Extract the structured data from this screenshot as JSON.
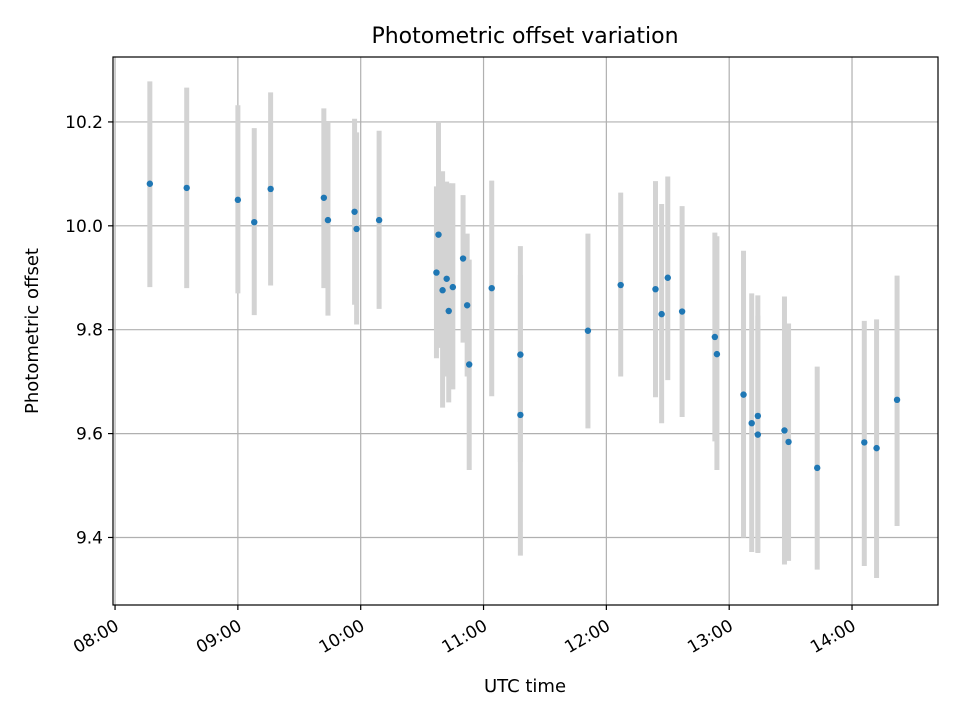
{
  "chart_data": {
    "type": "scatter",
    "title": "Photometric offset variation",
    "xlabel": "UTC time",
    "ylabel": "Photometric offset",
    "x_unit": "hours (UTC)",
    "xlim": [
      "07:59",
      "14:42"
    ],
    "ylim": [
      9.27,
      10.325
    ],
    "x_ticks": [
      "08:00",
      "09:00",
      "10:00",
      "11:00",
      "12:00",
      "13:00",
      "14:00"
    ],
    "y_ticks": [
      "9.4",
      "9.6",
      "9.8",
      "10.0",
      "10.2"
    ],
    "grid": true,
    "colors": {
      "point": "#1f77b4",
      "errorbar": "#d3d3d3",
      "grid": "#b0b0b0"
    },
    "points": [
      {
        "x": "08:17",
        "y": 10.081,
        "err_low": 9.882,
        "err_high": 10.278
      },
      {
        "x": "08:35",
        "y": 10.073,
        "err_low": 9.88,
        "err_high": 10.266
      },
      {
        "x": "09:00",
        "y": 10.05,
        "err_low": 9.87,
        "err_high": 10.232
      },
      {
        "x": "09:08",
        "y": 10.007,
        "err_low": 9.828,
        "err_high": 10.188
      },
      {
        "x": "09:16",
        "y": 10.071,
        "err_low": 9.885,
        "err_high": 10.257
      },
      {
        "x": "09:42",
        "y": 10.054,
        "err_low": 9.88,
        "err_high": 10.226
      },
      {
        "x": "09:44",
        "y": 10.011,
        "err_low": 9.827,
        "err_high": 10.2
      },
      {
        "x": "09:57",
        "y": 10.027,
        "err_low": 9.848,
        "err_high": 10.206
      },
      {
        "x": "09:58",
        "y": 9.994,
        "err_low": 9.81,
        "err_high": 10.18
      },
      {
        "x": "10:09",
        "y": 10.011,
        "err_low": 9.84,
        "err_high": 10.183
      },
      {
        "x": "10:37",
        "y": 9.91,
        "err_low": 9.745,
        "err_high": 10.076
      },
      {
        "x": "10:38",
        "y": 9.983,
        "err_low": 9.765,
        "err_high": 10.2
      },
      {
        "x": "10:40",
        "y": 9.876,
        "err_low": 9.65,
        "err_high": 10.105
      },
      {
        "x": "10:42",
        "y": 9.898,
        "err_low": 9.71,
        "err_high": 10.085
      },
      {
        "x": "10:43",
        "y": 9.836,
        "err_low": 9.66,
        "err_high": 10.082
      },
      {
        "x": "10:45",
        "y": 9.882,
        "err_low": 9.685,
        "err_high": 10.082
      },
      {
        "x": "10:50",
        "y": 9.937,
        "err_low": 9.775,
        "err_high": 10.059
      },
      {
        "x": "10:52",
        "y": 9.847,
        "err_low": 9.71,
        "err_high": 9.985
      },
      {
        "x": "10:53",
        "y": 9.733,
        "err_low": 9.53,
        "err_high": 9.935
      },
      {
        "x": "11:04",
        "y": 9.88,
        "err_low": 9.672,
        "err_high": 10.087
      },
      {
        "x": "11:18",
        "y": 9.752,
        "err_low": 9.545,
        "err_high": 9.961
      },
      {
        "x": "11:18",
        "y": 9.636,
        "err_low": 9.365,
        "err_high": 9.905
      },
      {
        "x": "11:51",
        "y": 9.798,
        "err_low": 9.61,
        "err_high": 9.985
      },
      {
        "x": "12:07",
        "y": 9.886,
        "err_low": 9.71,
        "err_high": 10.064
      },
      {
        "x": "12:24",
        "y": 9.878,
        "err_low": 9.67,
        "err_high": 10.086
      },
      {
        "x": "12:27",
        "y": 9.83,
        "err_low": 9.62,
        "err_high": 10.042
      },
      {
        "x": "12:30",
        "y": 9.9,
        "err_low": 9.703,
        "err_high": 10.095
      },
      {
        "x": "12:37",
        "y": 9.835,
        "err_low": 9.632,
        "err_high": 10.038
      },
      {
        "x": "12:53",
        "y": 9.786,
        "err_low": 9.585,
        "err_high": 9.987
      },
      {
        "x": "12:54",
        "y": 9.753,
        "err_low": 9.53,
        "err_high": 9.98
      },
      {
        "x": "13:07",
        "y": 9.675,
        "err_low": 9.4,
        "err_high": 9.952
      },
      {
        "x": "13:11",
        "y": 9.62,
        "err_low": 9.372,
        "err_high": 9.87
      },
      {
        "x": "13:14",
        "y": 9.634,
        "err_low": 9.37,
        "err_high": 9.866
      },
      {
        "x": "13:14",
        "y": 9.598,
        "err_low": 9.372,
        "err_high": 9.827
      },
      {
        "x": "13:27",
        "y": 9.606,
        "err_low": 9.348,
        "err_high": 9.864
      },
      {
        "x": "13:29",
        "y": 9.584,
        "err_low": 9.355,
        "err_high": 9.812
      },
      {
        "x": "13:43",
        "y": 9.534,
        "err_low": 9.338,
        "err_high": 9.729
      },
      {
        "x": "14:06",
        "y": 9.583,
        "err_low": 9.345,
        "err_high": 9.817
      },
      {
        "x": "14:12",
        "y": 9.572,
        "err_low": 9.322,
        "err_high": 9.82
      },
      {
        "x": "14:22",
        "y": 9.665,
        "err_low": 9.422,
        "err_high": 9.904
      }
    ]
  }
}
